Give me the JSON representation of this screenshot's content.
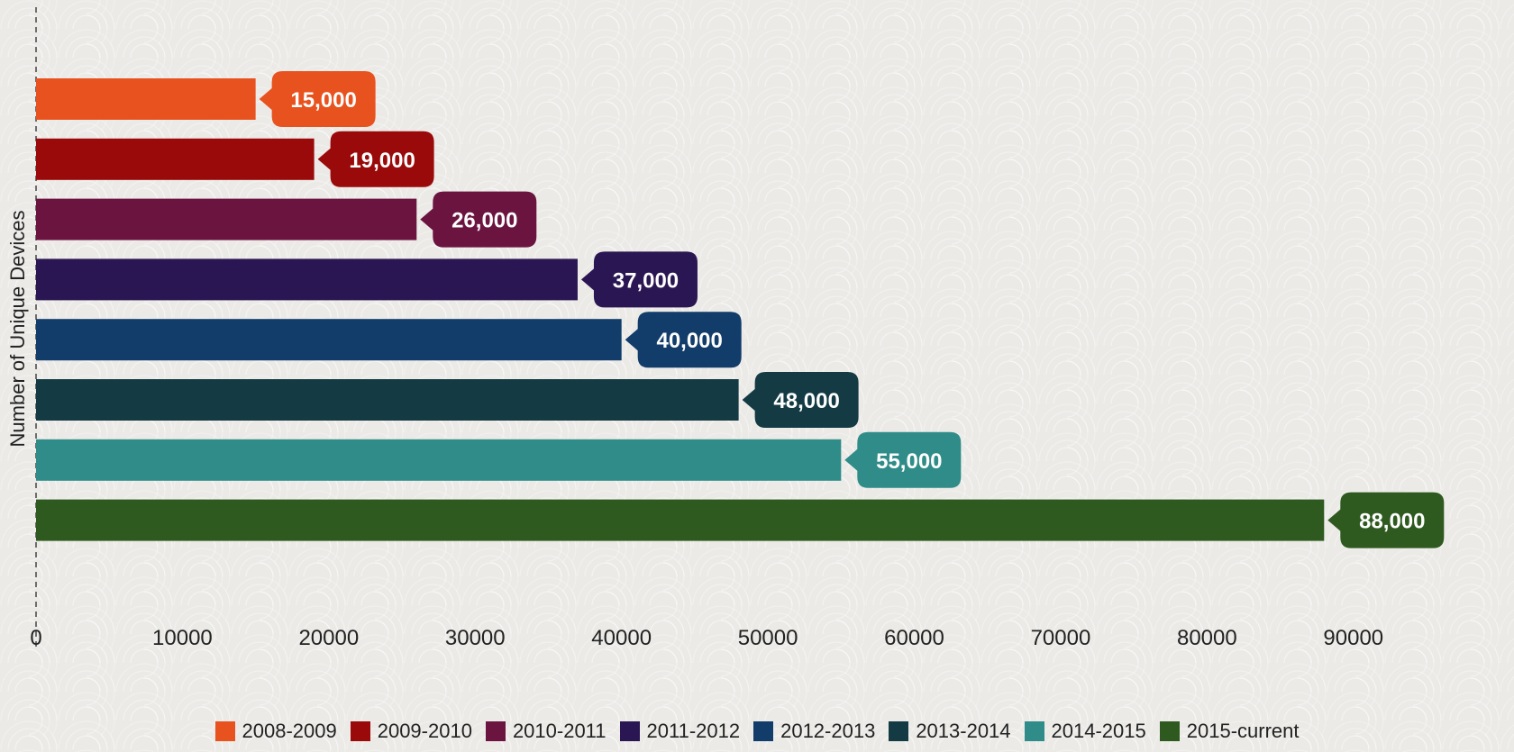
{
  "chart_data": {
    "type": "bar",
    "orientation": "horizontal",
    "categories": [
      "2008-2009",
      "2009-2010",
      "2010-2011",
      "2011-2012",
      "2012-2013",
      "2013-2014",
      "2014-2015",
      "2015-current"
    ],
    "values": [
      15000,
      19000,
      26000,
      37000,
      40000,
      48000,
      55000,
      88000
    ],
    "data_labels": [
      "15,000",
      "19,000",
      "26,000",
      "37,000",
      "40,000",
      "48,000",
      "55,000",
      "88,000"
    ],
    "colors": [
      "#e8521f",
      "#9a0a0a",
      "#6b1440",
      "#2a1652",
      "#123c6a",
      "#143a43",
      "#2f8c88",
      "#2e5a1f"
    ],
    "ylabel": "Number of Unique Devices",
    "xlabel": "",
    "xlim": [
      0,
      95000
    ],
    "xticks": [
      0,
      10000,
      20000,
      30000,
      40000,
      50000,
      60000,
      70000,
      80000,
      90000
    ],
    "xtick_labels": [
      "0",
      "10000",
      "20000",
      "30000",
      "40000",
      "50000",
      "60000",
      "70000",
      "80000",
      "90000"
    ],
    "legend_position": "bottom",
    "grid": false
  }
}
